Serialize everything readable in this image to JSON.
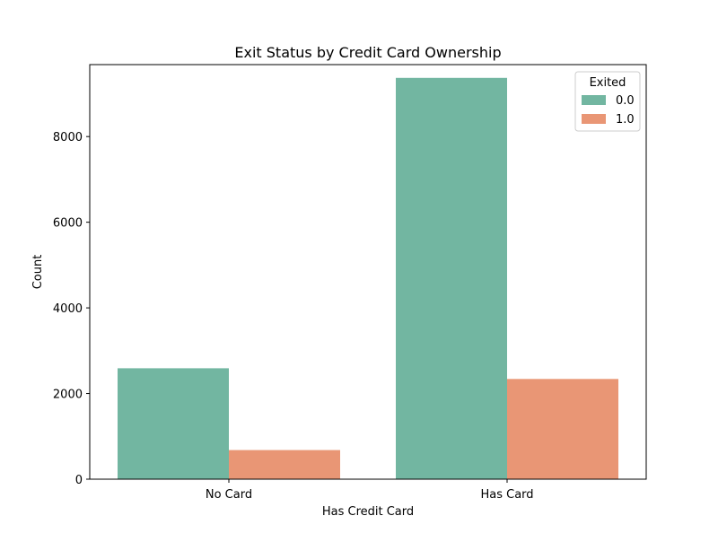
{
  "chart_data": {
    "type": "bar",
    "title": "Exit Status by Credit Card Ownership",
    "xlabel": "Has Credit Card",
    "ylabel": "Count",
    "categories": [
      "No Card",
      "Has Card"
    ],
    "series": [
      {
        "name": "0.0",
        "color": "#72b6a1",
        "values": [
          2590,
          9370
        ]
      },
      {
        "name": "1.0",
        "color": "#e99675",
        "values": [
          680,
          2340
        ]
      }
    ],
    "ylim": [
      0,
      9680
    ],
    "yticks": [
      0,
      2000,
      4000,
      6000,
      8000
    ],
    "grid": false,
    "legend": {
      "title": "Exited",
      "position": "top-right"
    }
  }
}
